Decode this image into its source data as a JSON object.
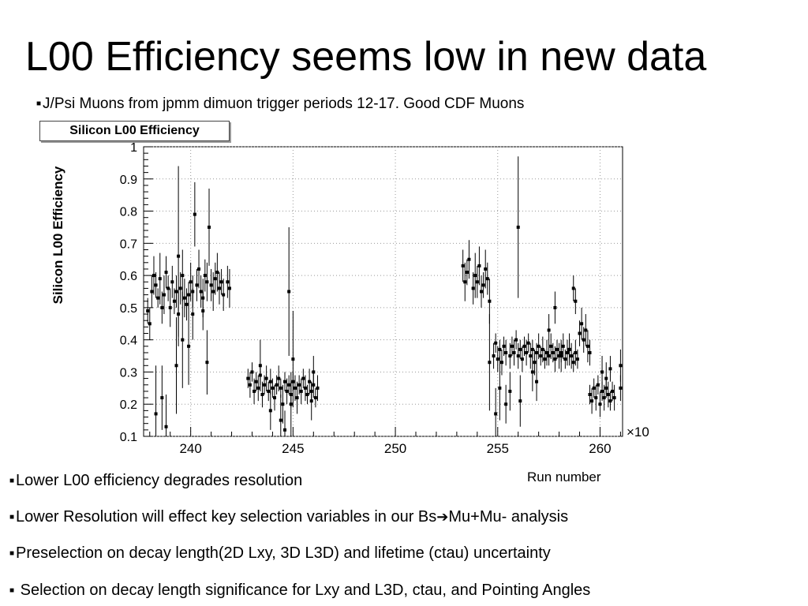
{
  "slide": {
    "title": "L00 Efficiency seems low in new data",
    "sub_bullet": "J/Psi Muons from jpmm dimuon trigger periods 12-17. Good CDF Muons",
    "bullets": [
      "Lower L00 efficiency degrades resolution",
      "Lower Resolution will effect key selection variables in our Bs",
      "Preselection on decay length(2D Lxy, 3D L3D) and lifetime (ctau) uncertainty",
      " Selection on decay length significance for Lxy and L3D, ctau, and Pointing Angles"
    ],
    "bullet2_tail": "Mu+Mu- analysis",
    "bullet_marker": "■",
    "arrow": "➔"
  },
  "chart_data": {
    "type": "scatter",
    "title": "Silicon L00 Efficiency",
    "xlabel": "Run number",
    "ylabel": "Silicon L00 Efficiency",
    "x_exponent_label": "×10",
    "xlim": [
      237.7,
      261.1
    ],
    "ylim": [
      0.1,
      1.0
    ],
    "x_ticks": [
      240,
      245,
      250,
      255,
      260
    ],
    "y_ticks": [
      0.1,
      0.2,
      0.3,
      0.4,
      0.5,
      0.6,
      0.7,
      0.8,
      0.9,
      1
    ],
    "y_tick_labels": [
      "0.1",
      "0.2",
      "0.3",
      "0.4",
      "0.5",
      "0.6",
      "0.7",
      "0.8",
      "0.9",
      "1"
    ],
    "grid": true,
    "marker_color": "#000000",
    "series": [
      {
        "values": [
          [
            237.9,
            0.49,
            0.04
          ],
          [
            238.0,
            0.45,
            0.05
          ],
          [
            238.1,
            0.55,
            0.05
          ],
          [
            238.2,
            0.6,
            0.06
          ],
          [
            238.3,
            0.57,
            0.04
          ],
          [
            238.4,
            0.53,
            0.03
          ],
          [
            238.5,
            0.59,
            0.08
          ],
          [
            238.6,
            0.5,
            0.05
          ],
          [
            238.7,
            0.54,
            0.06
          ],
          [
            238.8,
            0.61,
            0.05
          ],
          [
            238.9,
            0.56,
            0.04
          ],
          [
            239.0,
            0.5,
            0.06
          ],
          [
            239.1,
            0.58,
            0.05
          ],
          [
            239.2,
            0.52,
            0.04
          ],
          [
            239.3,
            0.55,
            0.05
          ],
          [
            239.4,
            0.48,
            0.07
          ],
          [
            239.5,
            0.56,
            0.05
          ],
          [
            239.6,
            0.6,
            0.08
          ],
          [
            239.7,
            0.53,
            0.06
          ],
          [
            239.8,
            0.51,
            0.05
          ],
          [
            239.9,
            0.54,
            0.04
          ],
          [
            240.0,
            0.58,
            0.06
          ],
          [
            240.1,
            0.55,
            0.05
          ],
          [
            240.2,
            0.79,
            0.1
          ],
          [
            240.3,
            0.57,
            0.05
          ],
          [
            240.4,
            0.62,
            0.06
          ],
          [
            240.5,
            0.55,
            0.05
          ],
          [
            240.6,
            0.53,
            0.06
          ],
          [
            240.7,
            0.6,
            0.05
          ],
          [
            240.8,
            0.58,
            0.06
          ],
          [
            240.9,
            0.75,
            0.12
          ],
          [
            241.0,
            0.57,
            0.05
          ],
          [
            241.1,
            0.55,
            0.06
          ],
          [
            241.2,
            0.59,
            0.05
          ],
          [
            241.3,
            0.61,
            0.06
          ],
          [
            241.4,
            0.56,
            0.05
          ],
          [
            241.5,
            0.58,
            0.04
          ],
          [
            241.6,
            0.54,
            0.05
          ],
          [
            241.8,
            0.58,
            0.05
          ],
          [
            241.9,
            0.56,
            0.06
          ]
        ]
      },
      {
        "values": [
          [
            238.3,
            0.17,
            0.15
          ],
          [
            238.6,
            0.22,
            0.1
          ],
          [
            238.8,
            0.13,
            0.1
          ],
          [
            239.3,
            0.32,
            0.15
          ],
          [
            239.4,
            0.66,
            0.28
          ],
          [
            239.6,
            0.4,
            0.15
          ],
          [
            239.9,
            0.38,
            0.12
          ],
          [
            240.1,
            0.48,
            0.08
          ],
          [
            240.6,
            0.49,
            0.06
          ],
          [
            240.8,
            0.33,
            0.1
          ]
        ]
      },
      {
        "values": [
          [
            242.8,
            0.28,
            0.03
          ],
          [
            242.9,
            0.26,
            0.04
          ],
          [
            243.0,
            0.3,
            0.03
          ],
          [
            243.1,
            0.24,
            0.04
          ],
          [
            243.2,
            0.27,
            0.03
          ],
          [
            243.3,
            0.25,
            0.04
          ],
          [
            243.4,
            0.29,
            0.03
          ],
          [
            243.5,
            0.23,
            0.04
          ],
          [
            243.6,
            0.26,
            0.03
          ],
          [
            243.7,
            0.28,
            0.04
          ],
          [
            243.8,
            0.24,
            0.03
          ],
          [
            243.9,
            0.27,
            0.04
          ],
          [
            244.0,
            0.25,
            0.03
          ],
          [
            244.1,
            0.22,
            0.04
          ],
          [
            244.2,
            0.26,
            0.03
          ],
          [
            244.3,
            0.28,
            0.04
          ],
          [
            244.4,
            0.25,
            0.03
          ],
          [
            244.5,
            0.2,
            0.06
          ],
          [
            244.6,
            0.27,
            0.03
          ],
          [
            244.7,
            0.24,
            0.04
          ],
          [
            244.8,
            0.26,
            0.03
          ],
          [
            244.9,
            0.23,
            0.04
          ],
          [
            245.0,
            0.27,
            0.03
          ],
          [
            245.1,
            0.25,
            0.04
          ],
          [
            245.2,
            0.22,
            0.05
          ],
          [
            245.3,
            0.26,
            0.03
          ],
          [
            245.4,
            0.24,
            0.04
          ],
          [
            245.5,
            0.28,
            0.03
          ],
          [
            245.6,
            0.25,
            0.04
          ],
          [
            245.7,
            0.23,
            0.03
          ],
          [
            245.8,
            0.27,
            0.04
          ],
          [
            245.9,
            0.24,
            0.03
          ],
          [
            246.0,
            0.26,
            0.04
          ],
          [
            246.1,
            0.22,
            0.03
          ],
          [
            246.2,
            0.25,
            0.04
          ]
        ]
      },
      {
        "values": [
          [
            243.4,
            0.32,
            0.08
          ],
          [
            243.9,
            0.18,
            0.06
          ],
          [
            244.4,
            0.15,
            0.08
          ],
          [
            244.6,
            0.12,
            0.06
          ],
          [
            244.8,
            0.55,
            0.2
          ],
          [
            244.9,
            0.2,
            0.1
          ],
          [
            245.0,
            0.34,
            0.15
          ],
          [
            245.9,
            0.21,
            0.06
          ],
          [
            246.0,
            0.3,
            0.05
          ]
        ]
      },
      {
        "values": [
          [
            253.3,
            0.63,
            0.05
          ],
          [
            253.4,
            0.58,
            0.06
          ],
          [
            253.5,
            0.61,
            0.04
          ],
          [
            253.6,
            0.65,
            0.06
          ],
          [
            253.8,
            0.56,
            0.05
          ],
          [
            253.9,
            0.6,
            0.07
          ],
          [
            254.0,
            0.58,
            0.05
          ],
          [
            254.1,
            0.63,
            0.06
          ],
          [
            254.2,
            0.55,
            0.05
          ],
          [
            254.3,
            0.57,
            0.04
          ],
          [
            254.4,
            0.62,
            0.06
          ],
          [
            254.5,
            0.59,
            0.05
          ],
          [
            254.6,
            0.52,
            0.07
          ],
          [
            254.8,
            0.35,
            0.04
          ],
          [
            254.9,
            0.39,
            0.03
          ],
          [
            255.0,
            0.34,
            0.04
          ],
          [
            255.1,
            0.37,
            0.03
          ],
          [
            255.2,
            0.33,
            0.04
          ],
          [
            255.3,
            0.38,
            0.03
          ],
          [
            255.4,
            0.36,
            0.04
          ],
          [
            255.6,
            0.35,
            0.04
          ],
          [
            255.7,
            0.38,
            0.03
          ],
          [
            255.8,
            0.36,
            0.04
          ],
          [
            255.9,
            0.4,
            0.03
          ],
          [
            256.0,
            0.35,
            0.04
          ],
          [
            256.1,
            0.37,
            0.03
          ],
          [
            256.2,
            0.34,
            0.04
          ],
          [
            256.3,
            0.38,
            0.03
          ],
          [
            256.4,
            0.36,
            0.04
          ],
          [
            256.5,
            0.39,
            0.03
          ],
          [
            256.6,
            0.35,
            0.04
          ],
          [
            256.7,
            0.37,
            0.03
          ],
          [
            256.8,
            0.33,
            0.04
          ],
          [
            256.9,
            0.36,
            0.03
          ],
          [
            257.0,
            0.38,
            0.04
          ],
          [
            257.1,
            0.35,
            0.03
          ],
          [
            257.2,
            0.37,
            0.04
          ],
          [
            257.3,
            0.34,
            0.03
          ],
          [
            257.4,
            0.36,
            0.04
          ],
          [
            257.5,
            0.35,
            0.03
          ],
          [
            257.6,
            0.38,
            0.04
          ],
          [
            257.7,
            0.36,
            0.03
          ],
          [
            257.8,
            0.34,
            0.04
          ],
          [
            257.9,
            0.37,
            0.03
          ],
          [
            258.0,
            0.35,
            0.04
          ],
          [
            258.1,
            0.36,
            0.03
          ],
          [
            258.2,
            0.38,
            0.04
          ],
          [
            258.3,
            0.34,
            0.03
          ],
          [
            258.4,
            0.36,
            0.04
          ],
          [
            258.5,
            0.37,
            0.03
          ],
          [
            258.6,
            0.35,
            0.04
          ],
          [
            258.7,
            0.33,
            0.03
          ],
          [
            258.8,
            0.36,
            0.04
          ],
          [
            258.9,
            0.34,
            0.03
          ]
        ]
      },
      {
        "values": [
          [
            254.6,
            0.33,
            0.15
          ],
          [
            254.9,
            0.17,
            0.08
          ],
          [
            255.1,
            0.25,
            0.1
          ],
          [
            255.4,
            0.2,
            0.06
          ],
          [
            255.6,
            0.24,
            0.06
          ],
          [
            256.0,
            0.75,
            0.22
          ],
          [
            256.1,
            0.21,
            0.08
          ],
          [
            256.7,
            0.3,
            0.06
          ],
          [
            256.9,
            0.27,
            0.06
          ],
          [
            257.5,
            0.43,
            0.05
          ],
          [
            257.8,
            0.5,
            0.05
          ],
          [
            258.1,
            0.35,
            0.05
          ],
          [
            258.5,
            0.37,
            0.05
          ],
          [
            258.7,
            0.56,
            0.04
          ],
          [
            258.8,
            0.52,
            0.04
          ]
        ]
      },
      {
        "values": [
          [
            259.0,
            0.42,
            0.04
          ],
          [
            259.1,
            0.45,
            0.05
          ],
          [
            259.2,
            0.4,
            0.04
          ],
          [
            259.3,
            0.43,
            0.05
          ],
          [
            259.4,
            0.38,
            0.05
          ],
          [
            259.5,
            0.36,
            0.04
          ]
        ]
      },
      {
        "values": [
          [
            259.5,
            0.23,
            0.03
          ],
          [
            259.6,
            0.21,
            0.04
          ],
          [
            259.7,
            0.25,
            0.03
          ],
          [
            259.8,
            0.22,
            0.04
          ],
          [
            259.9,
            0.26,
            0.03
          ],
          [
            260.0,
            0.2,
            0.04
          ],
          [
            260.1,
            0.24,
            0.03
          ],
          [
            260.2,
            0.22,
            0.04
          ],
          [
            260.3,
            0.25,
            0.03
          ],
          [
            260.4,
            0.23,
            0.04
          ],
          [
            260.5,
            0.21,
            0.03
          ],
          [
            260.6,
            0.24,
            0.03
          ],
          [
            260.7,
            0.22,
            0.04
          ]
        ]
      },
      {
        "values": [
          [
            260.1,
            0.3,
            0.05
          ],
          [
            260.3,
            0.28,
            0.05
          ],
          [
            260.5,
            0.31,
            0.04
          ],
          [
            261.0,
            0.25,
            0.04
          ],
          [
            261.0,
            0.32,
            0.05
          ]
        ]
      }
    ]
  }
}
